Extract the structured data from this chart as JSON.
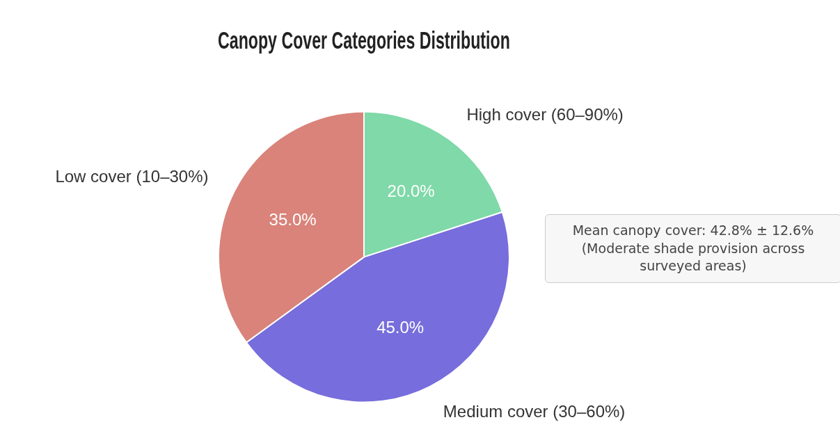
{
  "chart_data": {
    "type": "pie",
    "title": "Canopy Cover Categories Distribution",
    "categories": [
      "High cover (60–90%)",
      "Medium cover (30–60%)",
      "Low cover (10–30%)"
    ],
    "values": [
      20,
      45,
      35
    ],
    "colors": [
      "#7fd9a8",
      "#776ddc",
      "#d9837a"
    ],
    "value_labels": [
      "20.0%",
      "45.0%",
      "35.0%"
    ],
    "annotations": [
      "Mean canopy cover: 42.8% ± 12.6%",
      "(Moderate shade provision across surveyed areas)"
    ]
  }
}
